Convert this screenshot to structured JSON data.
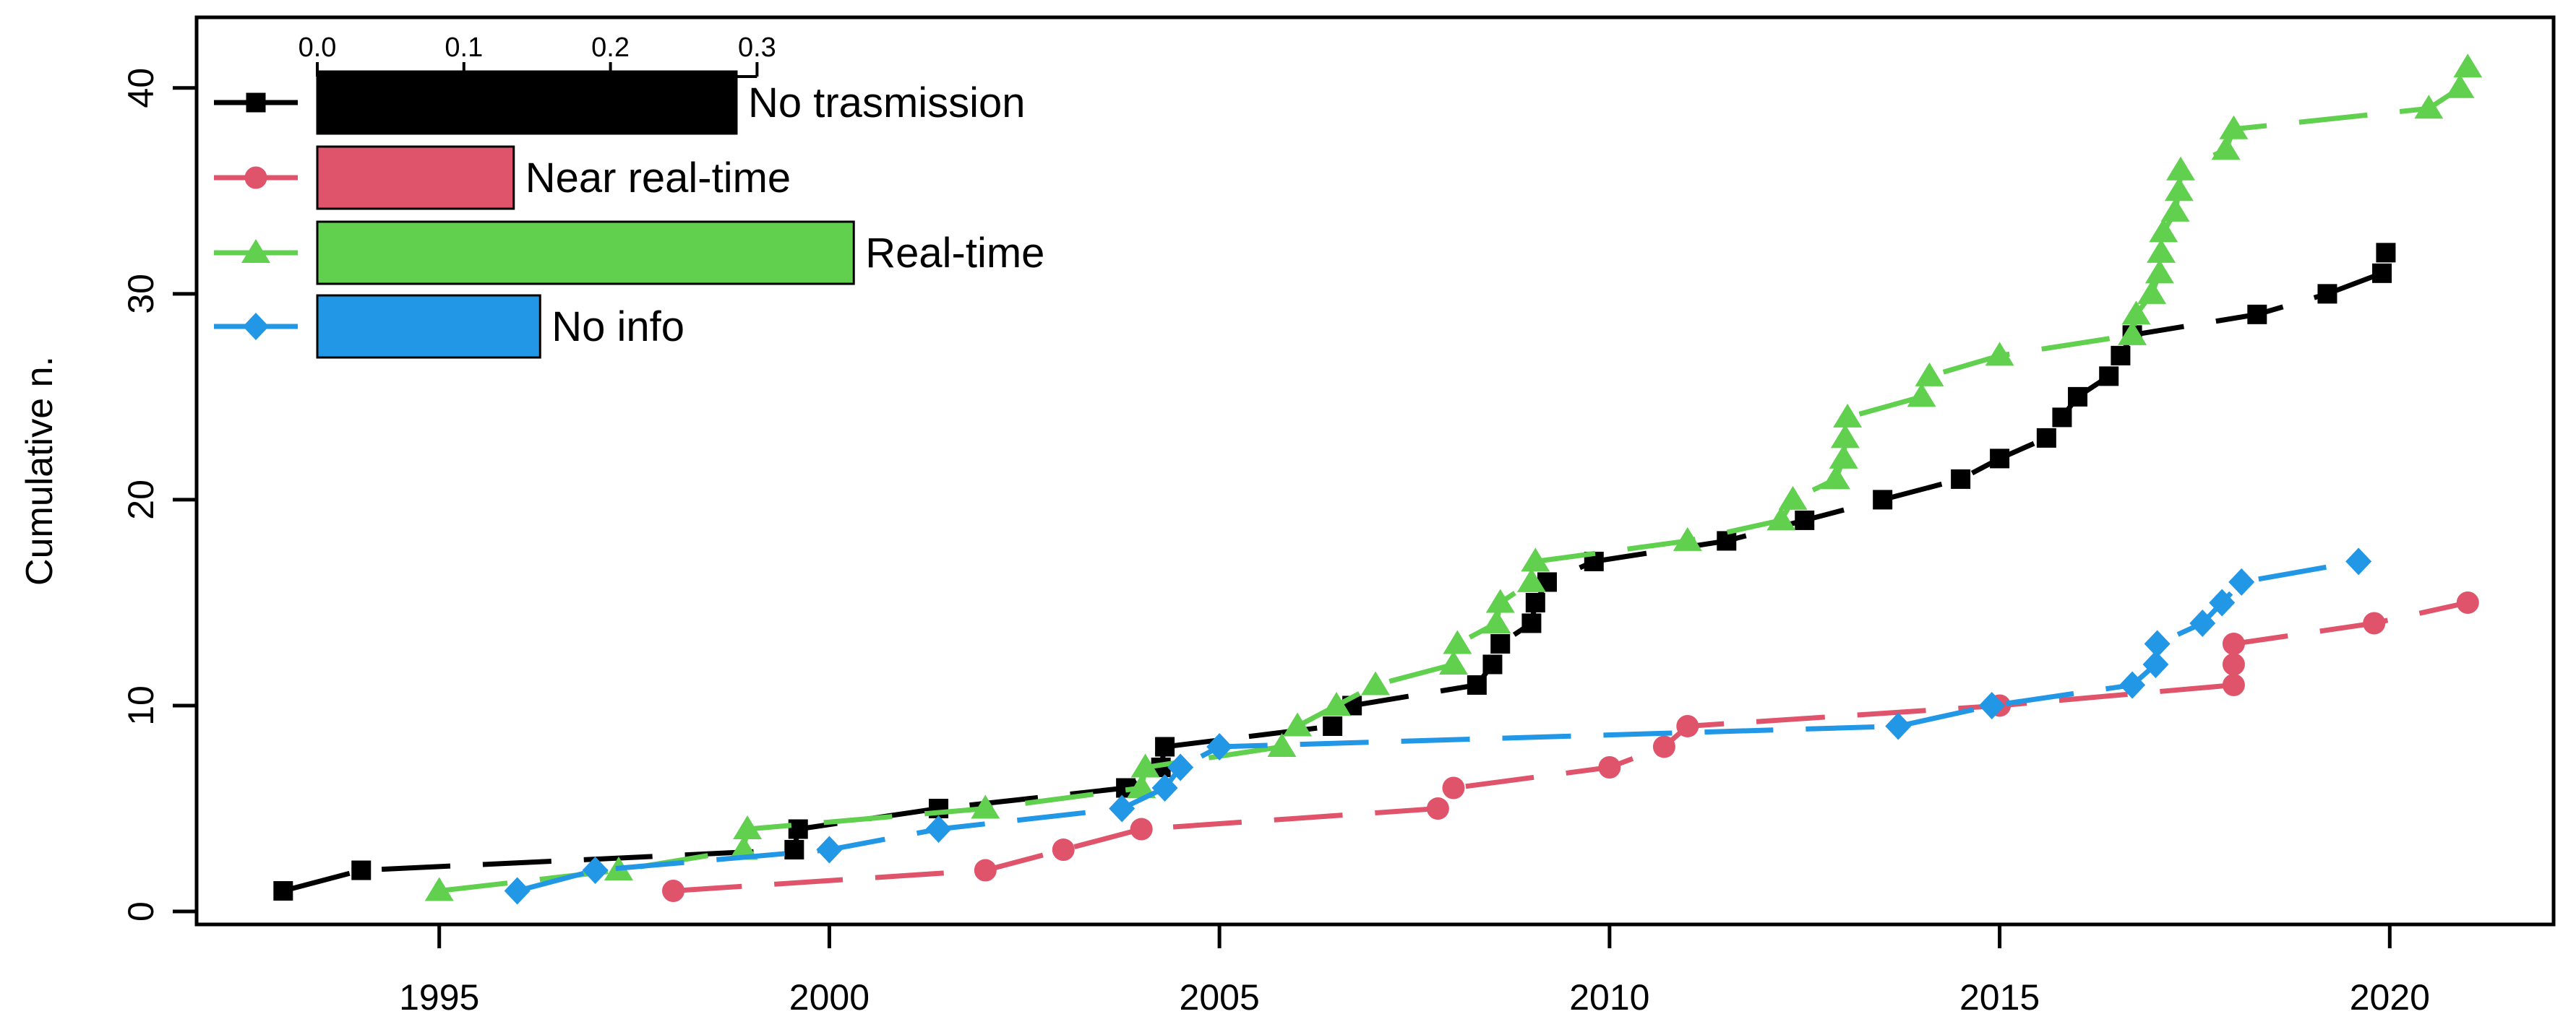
{
  "figure": {
    "background": "#ffffff"
  },
  "chart_data": {
    "type": "line",
    "title": "",
    "xlabel": "",
    "ylabel": "Cumulative n.",
    "xlim": [
      1991.89,
      2022.1
    ],
    "ylim": [
      -0.63,
      43.43
    ],
    "x_ticks": [
      1995,
      2000,
      2005,
      2010,
      2015,
      2020
    ],
    "y_ticks": [
      0,
      10,
      20,
      30,
      40
    ],
    "grid": false,
    "legend_position": "top-left-inset",
    "legend_bar_axis": {
      "tick_labels": [
        "0.0",
        "0.1",
        "0.2",
        "0.3"
      ],
      "tick_values": [
        0.0,
        0.1,
        0.2,
        0.3
      ],
      "max": 0.3
    },
    "series": [
      {
        "name": "no_transmission",
        "label": "No trasmission",
        "color": "#000000",
        "marker": "square",
        "proportion": 0.286,
        "points": [
          [
            1993,
            1
          ],
          [
            1994,
            2
          ],
          [
            1999.55,
            3
          ],
          [
            1999.6,
            4
          ],
          [
            2001.4,
            5
          ],
          [
            2003.8,
            6
          ],
          [
            2004.25,
            7
          ],
          [
            2004.3,
            8
          ],
          [
            2006.45,
            9
          ],
          [
            2006.7,
            10
          ],
          [
            2008.3,
            11
          ],
          [
            2008.5,
            12
          ],
          [
            2008.6,
            13
          ],
          [
            2009.0,
            14
          ],
          [
            2009.05,
            15
          ],
          [
            2009.2,
            16
          ],
          [
            2009.8,
            17
          ],
          [
            2011.5,
            18
          ],
          [
            2012.5,
            19
          ],
          [
            2013.5,
            20
          ],
          [
            2014.5,
            21
          ],
          [
            2015.0,
            22
          ],
          [
            2015.6,
            23
          ],
          [
            2015.8,
            24
          ],
          [
            2016.0,
            25
          ],
          [
            2016.4,
            26
          ],
          [
            2016.55,
            27
          ],
          [
            2016.7,
            28
          ],
          [
            2018.3,
            29
          ],
          [
            2019.2,
            30
          ],
          [
            2019.9,
            31
          ],
          [
            2019.95,
            32
          ]
        ]
      },
      {
        "name": "near_real_time",
        "label": "Near real-time",
        "color": "#DF536B",
        "marker": "circle",
        "proportion": 0.134,
        "points": [
          [
            1998,
            1
          ],
          [
            2002,
            2
          ],
          [
            2003,
            3
          ],
          [
            2004,
            4
          ],
          [
            2007.8,
            5
          ],
          [
            2008,
            6
          ],
          [
            2010,
            7
          ],
          [
            2010.7,
            8
          ],
          [
            2011,
            9
          ],
          [
            2015,
            10
          ],
          [
            2018,
            11
          ],
          [
            2018,
            12
          ],
          [
            2018,
            13
          ],
          [
            2019.8,
            14
          ],
          [
            2021,
            15
          ]
        ]
      },
      {
        "name": "real_time",
        "label": "Real-time",
        "color": "#61D04F",
        "marker": "triangle",
        "proportion": 0.366,
        "points": [
          [
            1995,
            1
          ],
          [
            1997.3,
            2
          ],
          [
            1998.9,
            3
          ],
          [
            1998.95,
            4
          ],
          [
            2002,
            5
          ],
          [
            2004,
            6
          ],
          [
            2004.05,
            7
          ],
          [
            2005.8,
            8
          ],
          [
            2006,
            9
          ],
          [
            2006.5,
            10
          ],
          [
            2007,
            11
          ],
          [
            2008,
            12
          ],
          [
            2008.05,
            13
          ],
          [
            2008.55,
            14
          ],
          [
            2008.6,
            15
          ],
          [
            2009,
            16
          ],
          [
            2009.05,
            17
          ],
          [
            2011,
            18
          ],
          [
            2012.2,
            19
          ],
          [
            2012.35,
            20
          ],
          [
            2012.9,
            21
          ],
          [
            2013,
            22
          ],
          [
            2013.02,
            23
          ],
          [
            2013.05,
            24
          ],
          [
            2014,
            25
          ],
          [
            2014.1,
            26
          ],
          [
            2015,
            27
          ],
          [
            2016.7,
            28
          ],
          [
            2016.75,
            29
          ],
          [
            2016.95,
            30
          ],
          [
            2017.05,
            31
          ],
          [
            2017.07,
            32
          ],
          [
            2017.1,
            33
          ],
          [
            2017.25,
            34
          ],
          [
            2017.3,
            35
          ],
          [
            2017.32,
            36
          ],
          [
            2017.9,
            37
          ],
          [
            2018,
            38
          ],
          [
            2020.5,
            39
          ],
          [
            2020.9,
            40
          ],
          [
            2021,
            41
          ]
        ]
      },
      {
        "name": "no_info",
        "label": "No info",
        "color": "#2297E6",
        "marker": "diamond",
        "proportion": 0.152,
        "points": [
          [
            1996,
            1
          ],
          [
            1997,
            2
          ],
          [
            2000,
            3
          ],
          [
            2001.4,
            4
          ],
          [
            2003.75,
            5
          ],
          [
            2004.3,
            6
          ],
          [
            2004.5,
            7
          ],
          [
            2005,
            8
          ],
          [
            2013.7,
            9
          ],
          [
            2014.9,
            10
          ],
          [
            2016.7,
            11
          ],
          [
            2017,
            12
          ],
          [
            2017.02,
            13
          ],
          [
            2017.6,
            14
          ],
          [
            2017.85,
            15
          ],
          [
            2018.1,
            16
          ],
          [
            2019.6,
            17
          ]
        ]
      }
    ]
  }
}
